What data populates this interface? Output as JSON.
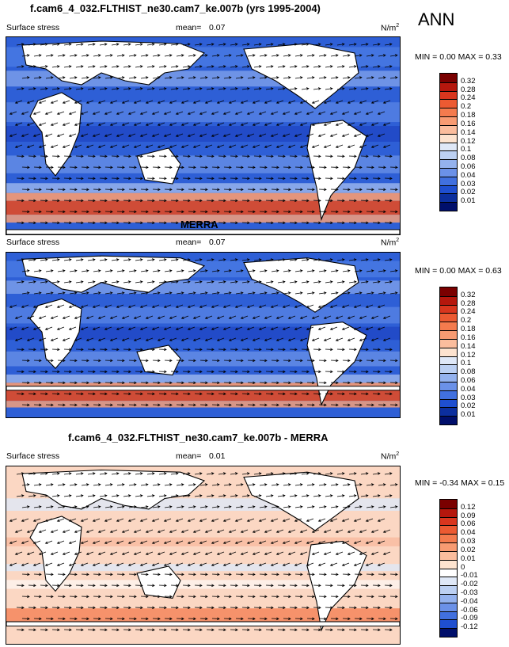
{
  "season": "ANN",
  "panels": [
    {
      "title": "f.cam6_4_032.FLTHIST_ne30.cam7_ke.007b (yrs 1995-2004)",
      "variable": "Surface stress",
      "mean_label": "mean=",
      "mean_value": "0.07",
      "units": "N/m",
      "units_exp": "2",
      "minmax": "MIN =  0.00 MAX =  0.33",
      "colorbar": [
        "0.32",
        "0.28",
        "0.24",
        "0.2",
        "0.18",
        "0.16",
        "0.14",
        "0.12",
        "0.1",
        "0.08",
        "0.06",
        "0.04",
        "0.03",
        "0.02",
        "0.01"
      ],
      "colors": [
        "#7a0000",
        "#b5170d",
        "#d9361e",
        "#ec5a32",
        "#f47b4e",
        "#f89b72",
        "#fbbd9d",
        "#fde3cf",
        "#dfe8f7",
        "#bcd0f2",
        "#94b2ee",
        "#6b91e8",
        "#4170df",
        "#1f4fd0",
        "#0c2f9e",
        "#000f6b"
      ],
      "style": "pos"
    },
    {
      "title": "MERRA",
      "variable": "Surface stress",
      "mean_label": "mean=",
      "mean_value": "0.07",
      "units": "N/m",
      "units_exp": "2",
      "minmax": "MIN =  0.00 MAX =  0.63",
      "colorbar": [
        "0.32",
        "0.28",
        "0.24",
        "0.2",
        "0.18",
        "0.16",
        "0.14",
        "0.12",
        "0.1",
        "0.08",
        "0.06",
        "0.04",
        "0.03",
        "0.02",
        "0.01"
      ],
      "colors": [
        "#7a0000",
        "#b5170d",
        "#d9361e",
        "#ec5a32",
        "#f47b4e",
        "#f89b72",
        "#fbbd9d",
        "#fde3cf",
        "#dfe8f7",
        "#bcd0f2",
        "#94b2ee",
        "#6b91e8",
        "#4170df",
        "#1f4fd0",
        "#0c2f9e",
        "#000f6b"
      ],
      "style": "pos"
    },
    {
      "title": "f.cam6_4_032.FLTHIST_ne30.cam7_ke.007b - MERRA",
      "variable": "Surface stress",
      "mean_label": "mean=",
      "mean_value": "0.01",
      "units": "N/m",
      "units_exp": "2",
      "minmax": "MIN = -0.34 MAX =  0.15",
      "colorbar": [
        "0.12",
        "0.09",
        "0.06",
        "0.04",
        "0.03",
        "0.02",
        "0.01",
        "0",
        "-0.01",
        "-0.02",
        "-0.03",
        "-0.04",
        "-0.06",
        "-0.09",
        "-0.12"
      ],
      "colors": [
        "#7a0000",
        "#b5170d",
        "#d9361e",
        "#ec5a32",
        "#f47b4e",
        "#f89b72",
        "#fbbd9d",
        "#fde3cf",
        "#ffffff",
        "#dfe8f7",
        "#bcd0f2",
        "#94b2ee",
        "#6b91e8",
        "#4170df",
        "#1f4fd0",
        "#000f6b"
      ],
      "style": "diff"
    }
  ]
}
